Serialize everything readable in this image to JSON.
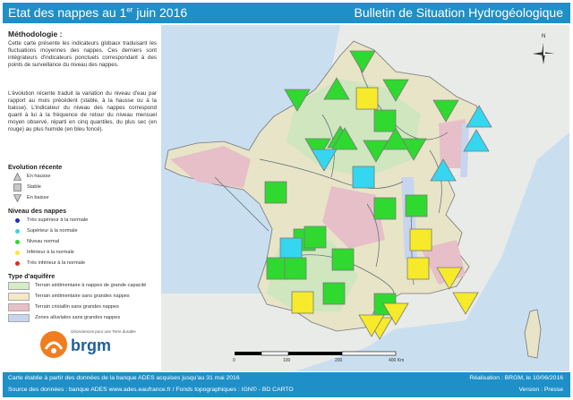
{
  "header": {
    "title_main": "Etat des nappes au 1",
    "title_sup": "er",
    "title_end": " juin 2016",
    "subtitle": "Bulletin de Situation Hydrogéologique"
  },
  "methodology": {
    "title": "Méthodologie :",
    "paragraph1": "Cette carte présente les indicateurs globaux traduisant les fluctuations moyennes des nappes. Ces derniers sont intégrateurs d'indicateurs ponctuels correspondant à des points de surveillance du niveau des nappes.",
    "paragraph2": "L'évolution récente traduit la variation du niveau d'eau par rapport au mois précédent (stable, à la hausse ou à la baisse). L'indicateur du niveau des nappes correspond quant à lui à la fréquence de retour du niveau mensuel moyen observé, réparti en cinq quantiles, du plus sec (en rouge) au plus humide (en bleu foncé)."
  },
  "legend_evolution": {
    "title": "Evolution récente",
    "items": [
      {
        "label": "En hausse",
        "shape": "triangle-up"
      },
      {
        "label": "Stable",
        "shape": "square"
      },
      {
        "label": "En baisse",
        "shape": "triangle-down"
      }
    ]
  },
  "legend_niveau": {
    "title": "Niveau des nappes",
    "items": [
      {
        "label": "Très supérieur à la normale",
        "color": "#1c2db8"
      },
      {
        "label": "Supérieur à la normale",
        "color": "#35d6f0"
      },
      {
        "label": "Niveau normal",
        "color": "#2fd92f"
      },
      {
        "label": "Inférieur à la normale",
        "color": "#f6ea2a"
      },
      {
        "label": "Très inférieur à la normale",
        "color": "#e8271f"
      }
    ]
  },
  "legend_aquifere": {
    "title": "Type d'aquifère",
    "items": [
      {
        "label": "Terrain sédimentaire à nappes de grande capacité",
        "color": "#d6ecc6"
      },
      {
        "label": "Terrain sédimentaire sans grandes nappes",
        "color": "#f3e9c4"
      },
      {
        "label": "Terrain cristallin sans grandes nappes",
        "color": "#e6bfc8"
      },
      {
        "label": "Zones alluviales sans grandes nappes",
        "color": "#c8d5ee"
      }
    ]
  },
  "brgm": {
    "tagline": "Géosciences pour une Terre durable",
    "name": "brgm"
  },
  "map": {
    "north_label": "N",
    "scale_labels": [
      "0",
      "100",
      "200",
      "400 Km"
    ],
    "indicators": [
      {
        "shape": "triangle-down",
        "color": "#2fd92f"
      },
      {
        "shape": "triangle-down",
        "color": "#2fd92f"
      },
      {
        "shape": "triangle-up",
        "color": "#2fd92f"
      },
      {
        "shape": "square",
        "color": "#f6ea2a"
      },
      {
        "shape": "triangle-down",
        "color": "#2fd92f"
      },
      {
        "shape": "triangle-down",
        "color": "#2fd92f"
      },
      {
        "shape": "triangle-up",
        "color": "#35d6f0"
      },
      {
        "shape": "triangle-up",
        "color": "#2fd92f"
      },
      {
        "shape": "square",
        "color": "#2fd92f"
      },
      {
        "shape": "triangle-up",
        "color": "#2fd92f"
      },
      {
        "shape": "triangle-down",
        "color": "#2fd92f"
      },
      {
        "shape": "triangle-down",
        "color": "#2fd92f"
      },
      {
        "shape": "triangle-down",
        "color": "#2fd92f"
      },
      {
        "shape": "triangle-up",
        "color": "#2fd92f"
      },
      {
        "shape": "triangle-down",
        "color": "#35d6f0"
      },
      {
        "shape": "triangle-up",
        "color": "#35d6f0"
      },
      {
        "shape": "square",
        "color": "#35d6f0"
      },
      {
        "shape": "triangle-up",
        "color": "#35d6f0"
      },
      {
        "shape": "square",
        "color": "#2fd92f"
      },
      {
        "shape": "square",
        "color": "#2fd92f"
      },
      {
        "shape": "square",
        "color": "#2fd92f"
      },
      {
        "shape": "square",
        "color": "#2fd92f"
      },
      {
        "shape": "square",
        "color": "#35d6f0"
      },
      {
        "shape": "square",
        "color": "#2fd92f"
      },
      {
        "shape": "square",
        "color": "#f6ea2a"
      },
      {
        "shape": "square",
        "color": "#2fd92f"
      },
      {
        "shape": "square",
        "color": "#2fd92f"
      },
      {
        "shape": "square",
        "color": "#2fd92f"
      },
      {
        "shape": "square",
        "color": "#f6ea2a"
      },
      {
        "shape": "triangle-down",
        "color": "#f6ea2a"
      },
      {
        "shape": "square",
        "color": "#f6ea2a"
      },
      {
        "shape": "square",
        "color": "#2fd92f"
      },
      {
        "shape": "square",
        "color": "#2fd92f"
      },
      {
        "shape": "triangle-down",
        "color": "#f6ea2a"
      },
      {
        "shape": "triangle-down",
        "color": "#f6ea2a"
      },
      {
        "shape": "triangle-down",
        "color": "#f6ea2a"
      },
      {
        "shape": "triangle-down",
        "color": "#f6ea2a"
      }
    ]
  },
  "footer": {
    "left1": "Carte établie à partir des données de la banque ADES acquises jusqu'au 31 mai 2016",
    "left2": "Source des données : banque ADES www.ades.eaufrance.fr / Fonds topographiques : IGN© - BD CARTO",
    "right1": "Réalisation : BRGM, le 10/06/2016",
    "right2": "Version : Presse"
  }
}
